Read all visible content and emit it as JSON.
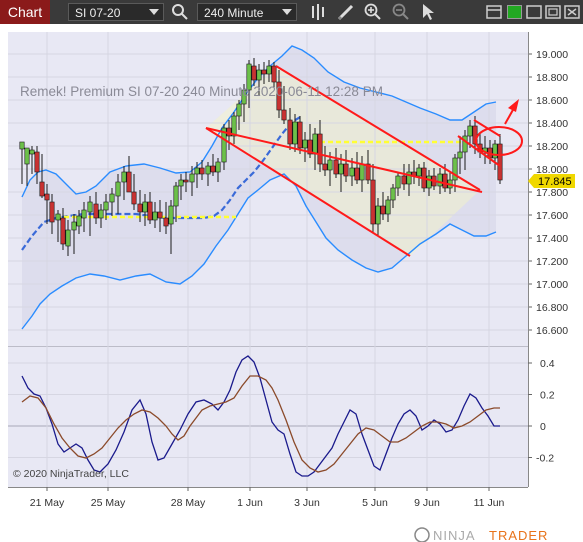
{
  "toolbar": {
    "tab_label": "Chart",
    "instrument": "SI 07-20",
    "interval": "240 Minute",
    "icons": [
      "search-icon",
      "bar-style-icon",
      "draw-pencil-icon",
      "zoom-in-icon",
      "zoom-out-icon",
      "pointer-icon",
      "tile-window-icon",
      "maximize-icon",
      "restore-icon",
      "close-icon"
    ],
    "accent_color": "#8b1a1a",
    "green_button_color": "#22a822"
  },
  "chart": {
    "watermark": "Remek!  Premium  SI 07-20  240 Minute  2020-06-11 12:28 PM",
    "copyright": "© 2020 NinjaTrader, LLC",
    "brand_prefix": "NINJA",
    "brand_suffix": "TRADER",
    "brand_suffix_color": "#e8731a",
    "current_price": "17.845",
    "current_price_color": "#f0d800",
    "price_axis": {
      "ticks": [
        "19.000",
        "18.800",
        "18.600",
        "18.400",
        "18.200",
        "18.000",
        "17.800",
        "17.600",
        "17.400",
        "17.200",
        "17.000",
        "16.800",
        "16.600"
      ],
      "values": [
        19.0,
        18.8,
        18.6,
        18.4,
        18.2,
        18.0,
        17.8,
        17.6,
        17.4,
        17.2,
        17.0,
        16.8,
        16.6
      ]
    },
    "osc_axis": {
      "ticks": [
        "0.4",
        "0.2",
        "0",
        "-0.2"
      ],
      "values": [
        0.4,
        0.2,
        0,
        -0.2
      ]
    },
    "date_labels": [
      "21 May",
      "25 May",
      "28 May",
      "1 Jun",
      "3 Jun",
      "5 Jun",
      "9 Jun",
      "11 Jun"
    ],
    "colors": {
      "band_fill": "#dcdcec",
      "band_line": "#2a8cff",
      "trend_line": "#ff1a1a",
      "support_line": "#ffff33",
      "osc_fast": "#1a1a8c",
      "osc_slow": "#8b4a2a",
      "candle_up": "#6cc04a",
      "candle_down": "#c83232",
      "background": "#e8e8f4"
    }
  }
}
